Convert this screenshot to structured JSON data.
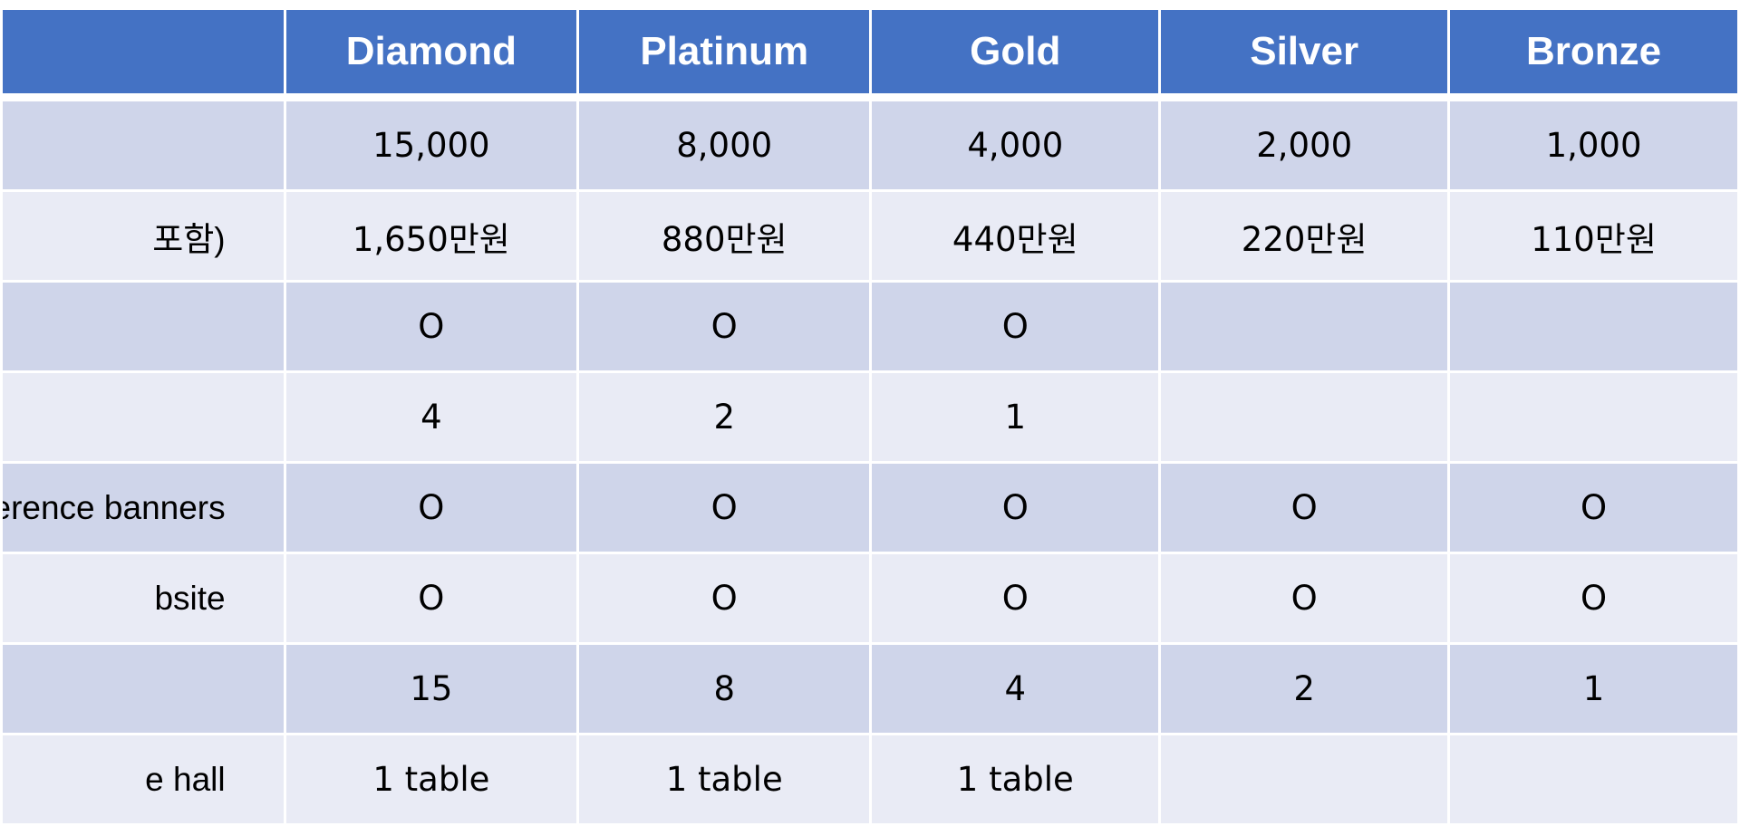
{
  "header": {
    "corner": "",
    "tiers": [
      "Diamond",
      "Platinum",
      "Gold",
      "Silver",
      "Bronze"
    ]
  },
  "rows": [
    {
      "label": "",
      "cells": [
        "15,000",
        "8,000",
        "4,000",
        "2,000",
        "1,000"
      ]
    },
    {
      "label": "포함)",
      "cells": [
        "1,650만원",
        "880만원",
        "440만원",
        "220만원",
        "110만원"
      ]
    },
    {
      "label": "",
      "cells": [
        "O",
        "O",
        "O",
        "",
        ""
      ]
    },
    {
      "label": "",
      "cells": [
        "4",
        "2",
        "1",
        "",
        ""
      ]
    },
    {
      "label": "erence banners",
      "cells": [
        "O",
        "O",
        "O",
        "O",
        "O"
      ]
    },
    {
      "label": "bsite",
      "cells": [
        "O",
        "O",
        "O",
        "O",
        "O"
      ]
    },
    {
      "label": "",
      "cells": [
        "15",
        "8",
        "4",
        "2",
        "1"
      ]
    },
    {
      "label": "e hall",
      "cells": [
        "1 table",
        "1 table",
        "1 table",
        "",
        ""
      ]
    }
  ],
  "colors": {
    "header_bg": "#4472c4",
    "band_dark": "#cfd5ea",
    "band_light": "#e9ebf5"
  }
}
